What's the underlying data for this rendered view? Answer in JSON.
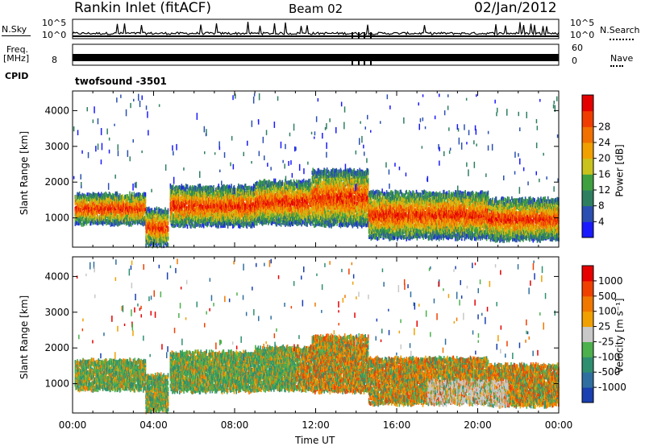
{
  "header": {
    "station": "Rankin Inlet (fitACF)",
    "beam": "Beam 02",
    "date": "02/Jan/2012"
  },
  "top_panels": {
    "nsky_label": "N.Sky",
    "nsearch_label": "N.Search",
    "nsky_ticks": [
      "10^5",
      "10^0"
    ],
    "nsearch_ticks": [
      "10^5",
      "10^0"
    ],
    "freq_label_line1": "Freq.",
    "freq_label_line2": "[MHz]",
    "freq_tick": "8",
    "nave_label": "Nave",
    "nave_ticks": [
      "60",
      "0"
    ],
    "cpid_label": "CPID",
    "cpid_value": "twofsound  -3501"
  },
  "colors": {
    "power_scale": [
      "#1a1aff",
      "#2a4fb0",
      "#2e7f60",
      "#3fa040",
      "#c9c21c",
      "#f0a000",
      "#f07000",
      "#f03c00",
      "#e50000"
    ],
    "velocity_scale": [
      "#1a3fb0",
      "#2f6fa0",
      "#2e8f70",
      "#4cb04c",
      "#c8c8c8",
      "#f0a000",
      "#f07800",
      "#f04000",
      "#e60000"
    ],
    "ground_scatter": "#c0c0c0"
  },
  "chart_data": [
    {
      "type": "heatmap",
      "name": "power",
      "xlabel": "",
      "ylabel": "Slant Range [km]",
      "x_ticks": [
        "00:00",
        "04:00",
        "08:00",
        "12:00",
        "16:00",
        "20:00",
        "00:00"
      ],
      "x_hours": [
        0,
        4,
        8,
        12,
        16,
        20,
        24
      ],
      "y_ticks": [
        1000,
        2000,
        3000,
        4000
      ],
      "ylim": [
        180,
        4550
      ],
      "xlim": [
        0,
        24
      ],
      "colorbar_label": "Power [dB]",
      "colorbar_ticks": [
        4,
        8,
        12,
        16,
        20,
        24,
        28
      ]
    },
    {
      "type": "heatmap",
      "name": "velocity",
      "xlabel": "Time UT",
      "ylabel": "Slant Range [km]",
      "x_ticks": [
        "00:00",
        "04:00",
        "08:00",
        "12:00",
        "16:00",
        "20:00",
        "00:00"
      ],
      "x_hours": [
        0,
        4,
        8,
        12,
        16,
        20,
        24
      ],
      "y_ticks": [
        1000,
        2000,
        3000,
        4000
      ],
      "ylim": [
        180,
        4550
      ],
      "xlim": [
        0,
        24
      ],
      "colorbar_label": "Velocity [m s⁻¹]",
      "colorbar_ticks": [
        "1000",
        "500",
        "100",
        "25",
        "-25",
        "-100",
        "-500",
        "-1000"
      ]
    }
  ],
  "scatter_bands": [
    {
      "t0": 0.1,
      "t1": 3.6,
      "r0": 850,
      "r1": 1650
    },
    {
      "t0": 3.6,
      "t1": 4.7,
      "r0": 250,
      "r1": 1200
    },
    {
      "t0": 4.8,
      "t1": 9.0,
      "r0": 800,
      "r1": 1850
    },
    {
      "t0": 9.0,
      "t1": 11.8,
      "r0": 850,
      "r1": 2000
    },
    {
      "t0": 11.8,
      "t1": 14.6,
      "r0": 800,
      "r1": 2300
    },
    {
      "t0": 14.6,
      "t1": 20.5,
      "r0": 450,
      "r1": 1700
    },
    {
      "t0": 20.5,
      "t1": 24.0,
      "r0": 400,
      "r1": 1500
    }
  ]
}
